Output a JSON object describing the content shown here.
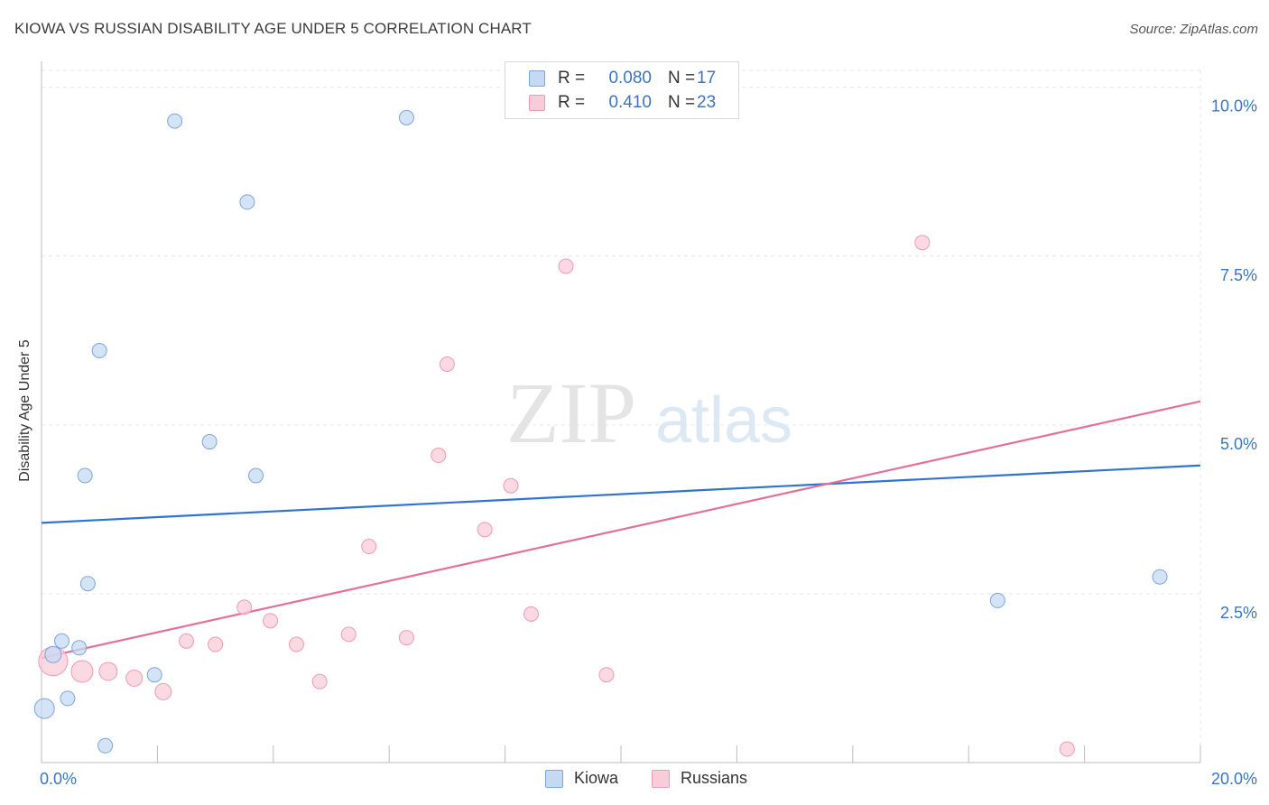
{
  "header": {
    "title": "KIOWA VS RUSSIAN DISABILITY AGE UNDER 5 CORRELATION CHART",
    "source": "Source: ZipAtlas.com"
  },
  "watermark": {
    "zip": "ZIP",
    "atlas": "atlas"
  },
  "legend": {
    "rows": [
      {
        "r_label": "R =",
        "r_value": "0.080",
        "n_label": "N =",
        "n_value": "17"
      },
      {
        "r_label": "R =",
        "r_value": "0.410",
        "n_label": "N =",
        "n_value": "23"
      }
    ]
  },
  "bottom_legend": {
    "kiowa": "Kiowa",
    "russians": "Russians"
  },
  "chart_data": {
    "type": "scatter",
    "title": "KIOWA VS RUSSIAN DISABILITY AGE UNDER 5 CORRELATION CHART",
    "xlabel": "",
    "ylabel": "Disability Age Under 5",
    "xlim": [
      0,
      20
    ],
    "ylim": [
      0,
      10.25
    ],
    "x_ticks": [
      "0.0%",
      "20.0%"
    ],
    "y_ticks": [
      {
        "value": 2.5,
        "label": "2.5%"
      },
      {
        "value": 5.0,
        "label": "5.0%"
      },
      {
        "value": 7.5,
        "label": "7.5%"
      },
      {
        "value": 10.0,
        "label": "10.0%"
      }
    ],
    "grid": true,
    "legend_position": "top-center",
    "colors": {
      "kiowa_fill": "#c5d9f3",
      "kiowa_stroke": "#7aa6de",
      "kiowa_line": "#2f74d0",
      "russians_fill": "#f9ccd9",
      "russians_stroke": "#ee9ab5",
      "russians_line": "#e46f98",
      "tick_label": "#3a75c4"
    },
    "series": [
      {
        "name": "Kiowa",
        "R": 0.08,
        "N": 17,
        "points": [
          {
            "x": 0.05,
            "y": 0.8,
            "size": 11
          },
          {
            "x": 0.2,
            "y": 1.6,
            "size": 9
          },
          {
            "x": 0.35,
            "y": 1.8,
            "size": 8
          },
          {
            "x": 0.45,
            "y": 0.95,
            "size": 8
          },
          {
            "x": 0.65,
            "y": 1.7,
            "size": 8
          },
          {
            "x": 0.75,
            "y": 4.25,
            "size": 8
          },
          {
            "x": 0.8,
            "y": 2.65,
            "size": 8
          },
          {
            "x": 1.0,
            "y": 6.1,
            "size": 8
          },
          {
            "x": 1.1,
            "y": 0.25,
            "size": 8
          },
          {
            "x": 1.95,
            "y": 1.3,
            "size": 8
          },
          {
            "x": 2.3,
            "y": 9.5,
            "size": 8
          },
          {
            "x": 2.9,
            "y": 4.75,
            "size": 8
          },
          {
            "x": 3.55,
            "y": 8.3,
            "size": 8
          },
          {
            "x": 3.7,
            "y": 4.25,
            "size": 8
          },
          {
            "x": 6.3,
            "y": 9.55,
            "size": 8
          },
          {
            "x": 16.5,
            "y": 2.4,
            "size": 8
          },
          {
            "x": 19.3,
            "y": 2.75,
            "size": 8
          }
        ],
        "trend": {
          "x0": 0,
          "y0": 3.55,
          "x1": 20,
          "y1": 4.4
        }
      },
      {
        "name": "Russians",
        "R": 0.41,
        "N": 23,
        "points": [
          {
            "x": 0.2,
            "y": 1.5,
            "size": 16
          },
          {
            "x": 0.7,
            "y": 1.35,
            "size": 12
          },
          {
            "x": 1.15,
            "y": 1.35,
            "size": 10
          },
          {
            "x": 1.6,
            "y": 1.25,
            "size": 9
          },
          {
            "x": 2.1,
            "y": 1.05,
            "size": 9
          },
          {
            "x": 2.5,
            "y": 1.8,
            "size": 8
          },
          {
            "x": 3.0,
            "y": 1.75,
            "size": 8
          },
          {
            "x": 3.5,
            "y": 2.3,
            "size": 8
          },
          {
            "x": 3.95,
            "y": 2.1,
            "size": 8
          },
          {
            "x": 4.4,
            "y": 1.75,
            "size": 8
          },
          {
            "x": 4.8,
            "y": 1.2,
            "size": 8
          },
          {
            "x": 5.3,
            "y": 1.9,
            "size": 8
          },
          {
            "x": 5.65,
            "y": 3.2,
            "size": 8
          },
          {
            "x": 6.3,
            "y": 1.85,
            "size": 8
          },
          {
            "x": 6.85,
            "y": 4.55,
            "size": 8
          },
          {
            "x": 7.0,
            "y": 5.9,
            "size": 8
          },
          {
            "x": 7.65,
            "y": 3.45,
            "size": 8
          },
          {
            "x": 8.1,
            "y": 4.1,
            "size": 8
          },
          {
            "x": 8.45,
            "y": 2.2,
            "size": 8
          },
          {
            "x": 9.05,
            "y": 7.35,
            "size": 8
          },
          {
            "x": 9.75,
            "y": 1.3,
            "size": 8
          },
          {
            "x": 15.2,
            "y": 7.7,
            "size": 8
          },
          {
            "x": 17.7,
            "y": 0.2,
            "size": 8
          }
        ],
        "trend": {
          "x0": 0,
          "y0": 1.55,
          "x1": 20,
          "y1": 5.35
        }
      }
    ]
  }
}
